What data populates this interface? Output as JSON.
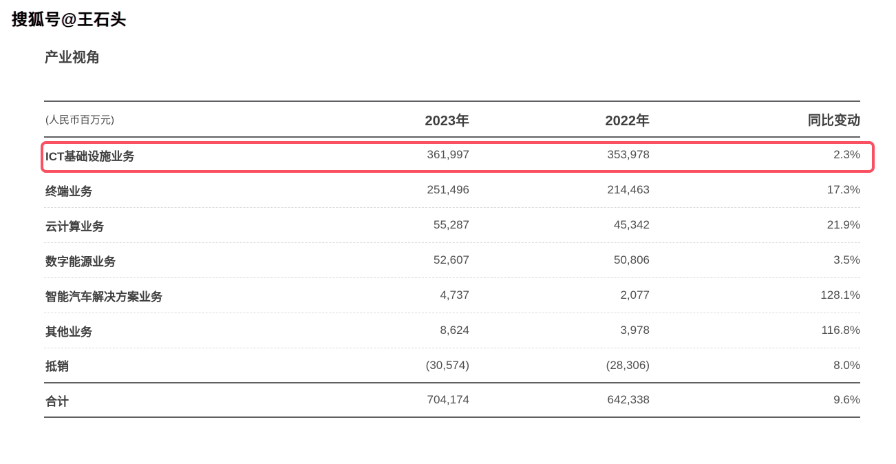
{
  "watermark": "搜狐号@王石头",
  "page_title": "产业视角",
  "table": {
    "unit_label": "(人民币百万元)",
    "columns": [
      "2023年",
      "2022年",
      "同比变动"
    ],
    "rows": [
      {
        "label": "ICT基础设施业务",
        "y2023": "361,997",
        "y2022": "353,978",
        "change": "2.3%",
        "highlighted": true
      },
      {
        "label": "终端业务",
        "y2023": "251,496",
        "y2022": "214,463",
        "change": "17.3%",
        "highlighted": false
      },
      {
        "label": "云计算业务",
        "y2023": "55,287",
        "y2022": "45,342",
        "change": "21.9%",
        "highlighted": false
      },
      {
        "label": "数字能源业务",
        "y2023": "52,607",
        "y2022": "50,806",
        "change": "3.5%",
        "highlighted": false
      },
      {
        "label": "智能汽车解决方案业务",
        "y2023": "4,737",
        "y2022": "2,077",
        "change": "128.1%",
        "highlighted": false
      },
      {
        "label": "其他业务",
        "y2023": "8,624",
        "y2022": "3,978",
        "change": "116.8%",
        "highlighted": false
      },
      {
        "label": "抵销",
        "y2023": "(30,574)",
        "y2022": "(28,306)",
        "change": "8.0%",
        "highlighted": false
      }
    ],
    "total_row": {
      "label": "合计",
      "y2023": "704,174",
      "y2022": "642,338",
      "change": "9.6%"
    }
  },
  "colors": {
    "highlight_border": "#f95062",
    "text_primary": "#3f3f3f",
    "text_value": "#4f4f4f",
    "rule_solid": "#5f6062",
    "rule_dashed": "#d9d9d9",
    "background": "#ffffff"
  }
}
